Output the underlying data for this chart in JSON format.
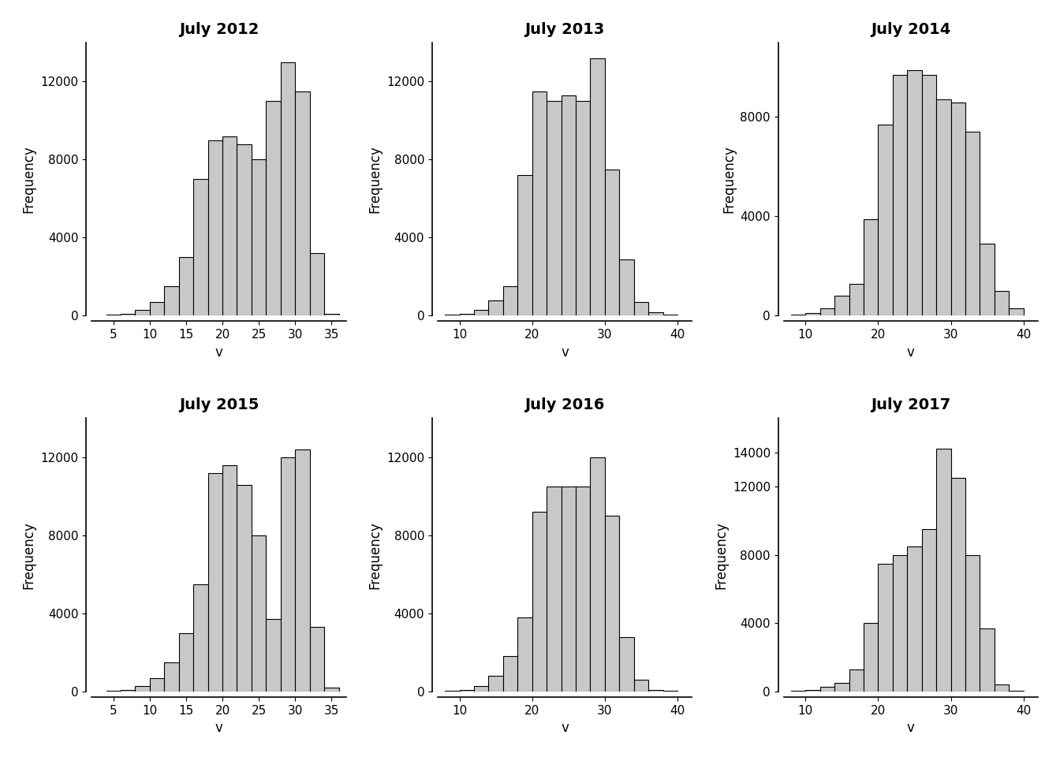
{
  "panels": [
    {
      "title": "July 2012",
      "bin_edges": [
        4,
        6,
        8,
        10,
        12,
        14,
        16,
        18,
        20,
        22,
        24,
        26,
        28,
        30,
        32,
        34,
        36
      ],
      "counts": [
        50,
        100,
        300,
        700,
        1500,
        3000,
        7000,
        9000,
        9200,
        8800,
        8000,
        11000,
        13000,
        11500,
        3200,
        100
      ],
      "xlim": [
        2,
        37
      ],
      "xticks": [
        5,
        10,
        15,
        20,
        25,
        30,
        35
      ],
      "yticks": [
        0,
        4000,
        8000,
        12000
      ],
      "ylim": [
        0,
        14000
      ]
    },
    {
      "title": "July 2013",
      "bin_edges": [
        8,
        10,
        12,
        14,
        16,
        18,
        20,
        22,
        24,
        26,
        28,
        30,
        32,
        34,
        36,
        38,
        40
      ],
      "counts": [
        50,
        100,
        300,
        800,
        1500,
        7200,
        11500,
        11000,
        11300,
        11000,
        13200,
        7500,
        2900,
        700,
        200,
        50
      ],
      "xlim": [
        7,
        42
      ],
      "xticks": [
        10,
        20,
        30,
        40
      ],
      "yticks": [
        0,
        4000,
        8000,
        12000
      ],
      "ylim": [
        0,
        14000
      ]
    },
    {
      "title": "July 2014",
      "bin_edges": [
        8,
        10,
        12,
        14,
        16,
        18,
        20,
        22,
        24,
        26,
        28,
        30,
        32,
        34,
        36,
        38,
        40
      ],
      "counts": [
        50,
        100,
        300,
        800,
        1300,
        3900,
        7700,
        9700,
        9900,
        9700,
        8700,
        8600,
        7400,
        2900,
        1000,
        300
      ],
      "xlim": [
        7,
        42
      ],
      "xticks": [
        10,
        20,
        30,
        40
      ],
      "yticks": [
        0,
        4000,
        8000
      ],
      "ylim": [
        0,
        11000
      ]
    },
    {
      "title": "July 2015",
      "bin_edges": [
        4,
        6,
        8,
        10,
        12,
        14,
        16,
        18,
        20,
        22,
        24,
        26,
        28,
        30,
        32,
        34,
        36
      ],
      "counts": [
        50,
        100,
        300,
        700,
        1500,
        3000,
        5500,
        11200,
        11600,
        10600,
        8000,
        3700,
        12000,
        12400,
        3300,
        200
      ],
      "xlim": [
        2,
        37
      ],
      "xticks": [
        5,
        10,
        15,
        20,
        25,
        30,
        35
      ],
      "yticks": [
        0,
        4000,
        8000,
        12000
      ],
      "ylim": [
        0,
        14000
      ]
    },
    {
      "title": "July 2016",
      "bin_edges": [
        8,
        10,
        12,
        14,
        16,
        18,
        20,
        22,
        24,
        26,
        28,
        30,
        32,
        34,
        36,
        38,
        40
      ],
      "counts": [
        50,
        100,
        300,
        800,
        1800,
        3800,
        9200,
        10500,
        10500,
        10500,
        12000,
        9000,
        2800,
        600,
        100,
        50
      ],
      "xlim": [
        7,
        42
      ],
      "xticks": [
        10,
        20,
        30,
        40
      ],
      "yticks": [
        0,
        4000,
        8000,
        12000
      ],
      "ylim": [
        0,
        14000
      ]
    },
    {
      "title": "July 2017",
      "bin_edges": [
        8,
        10,
        12,
        14,
        16,
        18,
        20,
        22,
        24,
        26,
        28,
        30,
        32,
        34,
        36,
        38,
        40
      ],
      "counts": [
        50,
        100,
        300,
        500,
        1300,
        4000,
        7500,
        8000,
        8500,
        9500,
        14200,
        12500,
        8000,
        3700,
        400,
        50
      ],
      "xlim": [
        7,
        42
      ],
      "xticks": [
        10,
        20,
        30,
        40
      ],
      "yticks": [
        0,
        4000,
        8000,
        12000,
        14000
      ],
      "ylim": [
        0,
        16000
      ]
    }
  ],
  "bar_color": "#c8c8c8",
  "bar_edge_color": "#000000",
  "bar_edge_width": 0.8,
  "ylabel": "Frequency",
  "xlabel": "v",
  "title_fontsize": 14,
  "label_fontsize": 12,
  "tick_fontsize": 11,
  "background_color": "#ffffff"
}
